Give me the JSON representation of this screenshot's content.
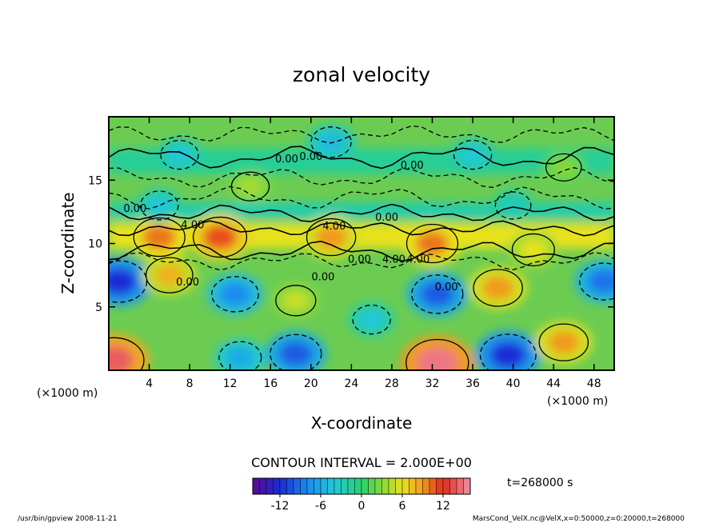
{
  "chart_data": {
    "type": "heatmap",
    "title": "zonal velocity",
    "xlabel": "X-coordinate",
    "ylabel": "Z-coordinate",
    "x_unit": "(×1000 m)",
    "y_unit": "(×1000 m)",
    "xlim": [
      0,
      50
    ],
    "ylim": [
      0,
      20
    ],
    "x_ticks": [
      "4",
      "8",
      "12",
      "16",
      "20",
      "24",
      "28",
      "32",
      "36",
      "40",
      "44",
      "48"
    ],
    "x_tick_values": [
      4,
      8,
      12,
      16,
      20,
      24,
      28,
      32,
      36,
      40,
      44,
      48
    ],
    "y_ticks": [
      "5",
      "10",
      "15"
    ],
    "y_tick_values": [
      5,
      10,
      15
    ],
    "contour_interval_text": "CONTOUR INTERVAL = 2.000E+00",
    "contour_labels": [
      "0.00",
      "0.00",
      "0.00",
      "0.00",
      "4.00",
      "4.00",
      "0.00",
      "0.00",
      "4.00",
      "4.00",
      "0.00",
      "0.00",
      "0.00"
    ],
    "time_label": "t=268000 s",
    "colorbar": {
      "min": -16,
      "max": 16,
      "tick_labels": [
        "-12",
        "-6",
        "0",
        "6",
        "12"
      ],
      "tick_values": [
        -12,
        -6,
        0,
        6,
        12
      ]
    },
    "features": [
      {
        "x": 1,
        "z": 7,
        "value": -12
      },
      {
        "x": 6,
        "z": 7.5,
        "value": 8
      },
      {
        "x": 12.5,
        "z": 6,
        "value": -8
      },
      {
        "x": 18.5,
        "z": 5.5,
        "value": 5
      },
      {
        "x": 32.5,
        "z": 6,
        "value": -10
      },
      {
        "x": 38.5,
        "z": 6.5,
        "value": 9
      },
      {
        "x": 49,
        "z": 7,
        "value": -9
      },
      {
        "x": 0.5,
        "z": 0.8,
        "value": 14
      },
      {
        "x": 32.5,
        "z": 0.6,
        "value": 15
      },
      {
        "x": 39.5,
        "z": 1.2,
        "value": -12
      },
      {
        "x": 18.5,
        "z": 1.3,
        "value": -10
      },
      {
        "x": 13,
        "z": 1,
        "value": -6
      },
      {
        "x": 45,
        "z": 2.2,
        "value": 9
      },
      {
        "x": 11,
        "z": 10.5,
        "value": 11
      },
      {
        "x": 22,
        "z": 10.5,
        "value": 9
      },
      {
        "x": 32,
        "z": 10,
        "value": 10
      },
      {
        "x": 5,
        "z": 10.5,
        "value": 10
      },
      {
        "x": 42,
        "z": 9.5,
        "value": 6
      },
      {
        "x": 7,
        "z": 17,
        "value": -4
      },
      {
        "x": 22,
        "z": 18,
        "value": -5
      },
      {
        "x": 36,
        "z": 17,
        "value": -4
      },
      {
        "x": 14,
        "z": 14.5,
        "value": 4
      },
      {
        "x": 45,
        "z": 16,
        "value": 3
      },
      {
        "x": 5,
        "z": 13,
        "value": -4
      },
      {
        "x": 40,
        "z": 13,
        "value": -3
      },
      {
        "x": 26,
        "z": 4,
        "value": -4
      }
    ]
  },
  "footer": {
    "left": "/usr/bin/gpview   2008-11-21",
    "right": "MarsCond_VelX.nc@VelX,x=0:50000,z=0:20000,t=268000"
  }
}
